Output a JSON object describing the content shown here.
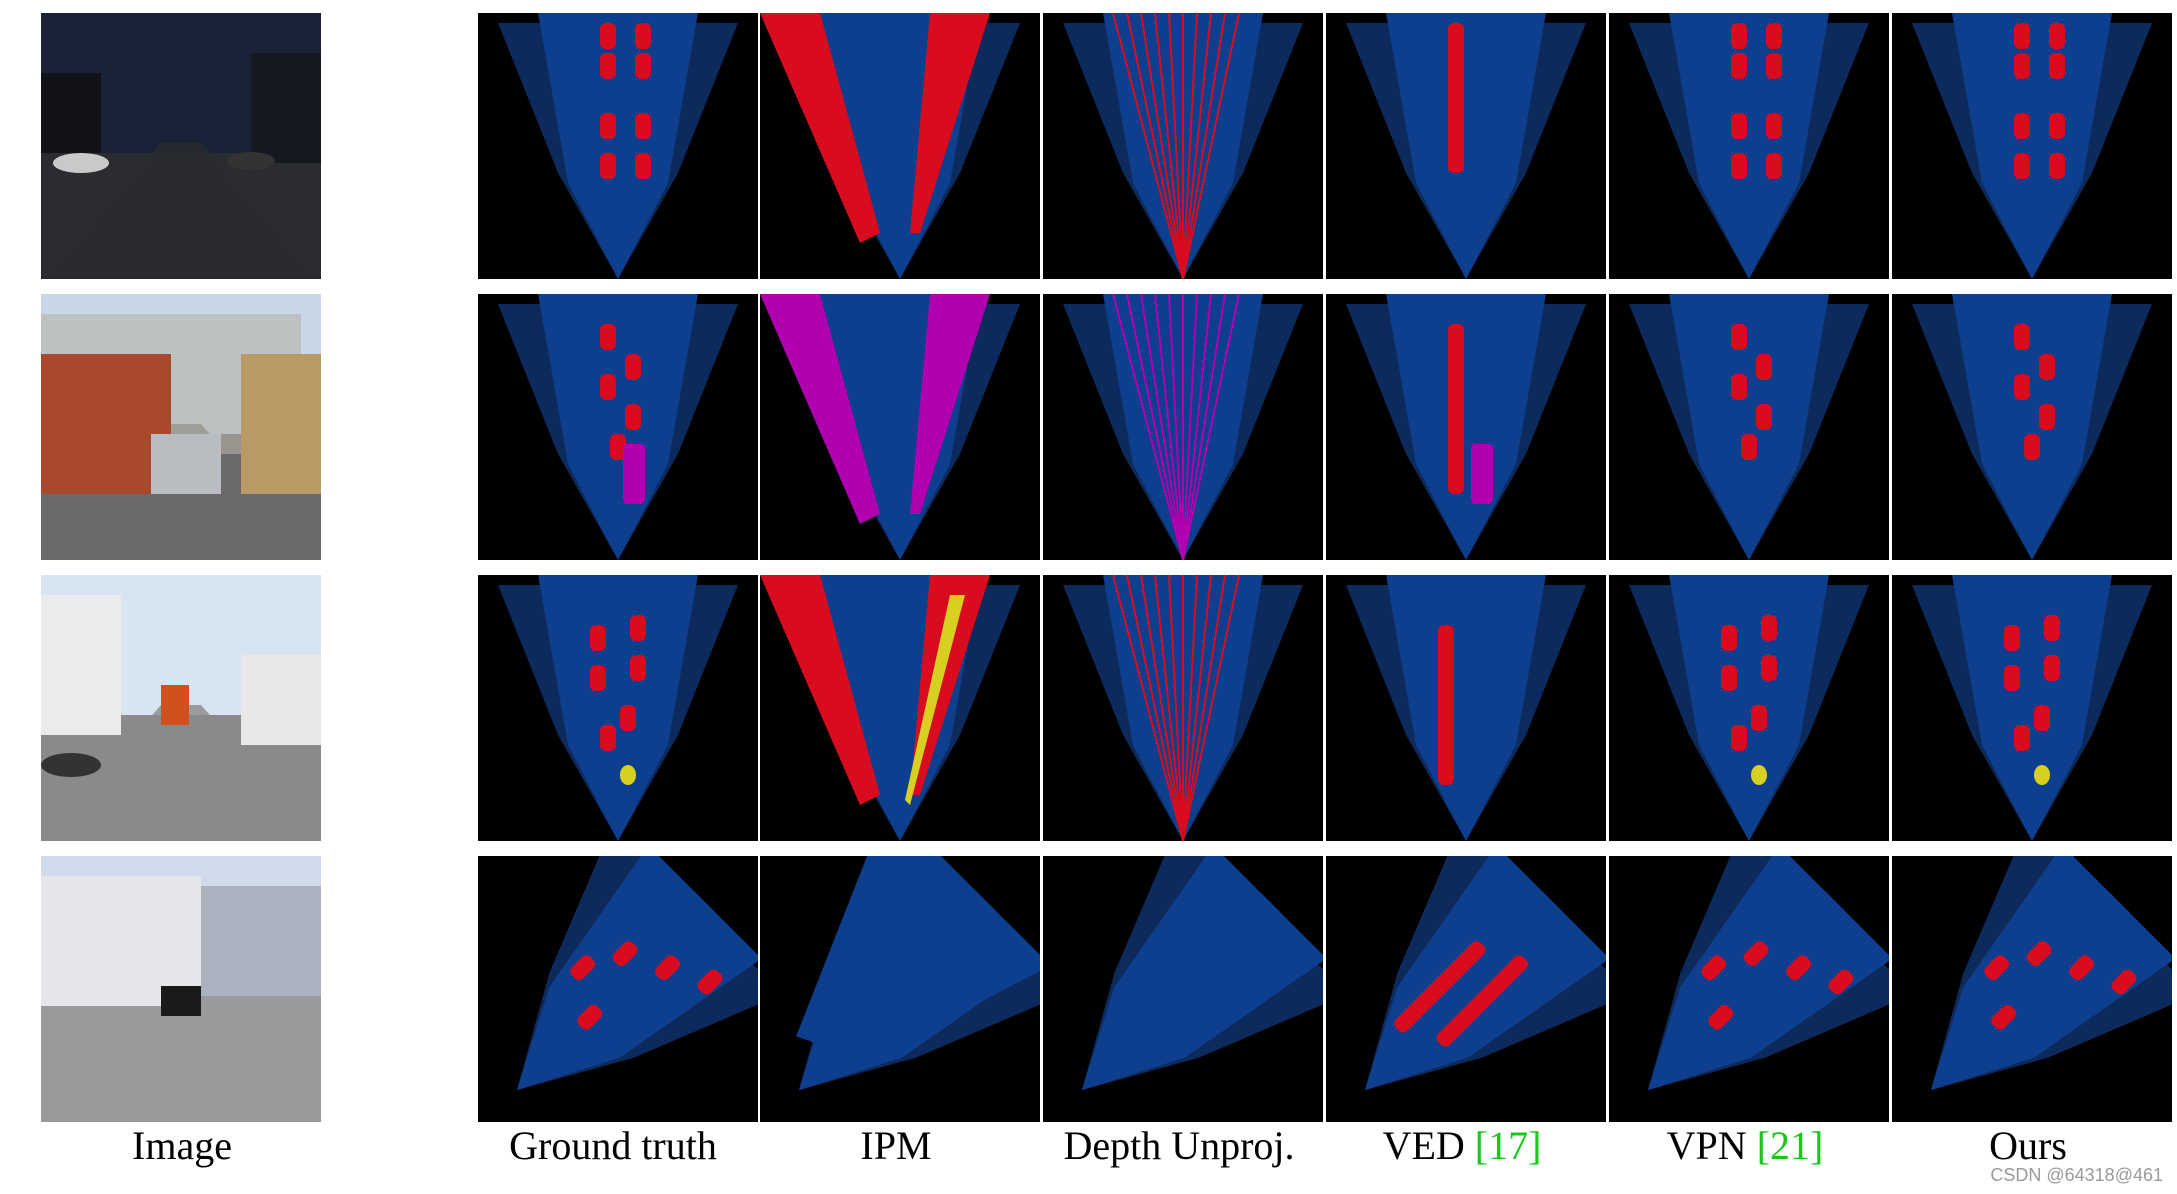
{
  "columns": [
    {
      "label": "Image",
      "ref": ""
    },
    {
      "label": "Ground truth",
      "ref": ""
    },
    {
      "label": "IPM",
      "ref": ""
    },
    {
      "label": "Depth Unproj.",
      "ref": ""
    },
    {
      "label": "VED",
      "ref": "17"
    },
    {
      "label": "VPN",
      "ref": "21"
    },
    {
      "label": "Ours",
      "ref": ""
    }
  ],
  "rows": [
    {
      "scene": "night-street"
    },
    {
      "scene": "bus-street"
    },
    {
      "scene": "pedestrian-crossing"
    },
    {
      "scene": "intersection-building"
    }
  ],
  "colors": {
    "background": "#000000",
    "drivable": "#0e3f8e",
    "unknown_field": "#0c2a5c",
    "car": "#d80c1e",
    "truck_bus": "#b000b0",
    "pedestrian": "#d8d020"
  },
  "watermark": "CSDN @64318@461"
}
